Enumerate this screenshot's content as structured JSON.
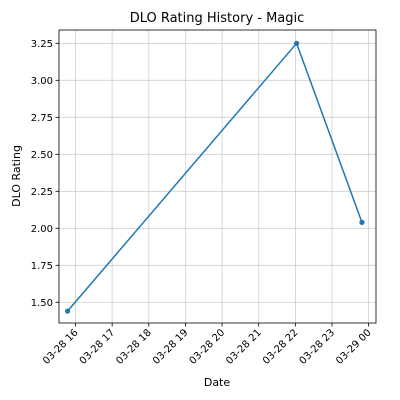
{
  "chart_data": {
    "type": "line",
    "title": "DLO Rating History - Magic",
    "xlabel": "Date",
    "ylabel": "DLO Rating",
    "x_axis_type": "datetime",
    "x_tick_labels": [
      "03-28 16",
      "03-28 17",
      "03-28 18",
      "03-28 19",
      "03-28 20",
      "03-28 21",
      "03-28 22",
      "03-28 23",
      "03-29 00"
    ],
    "x_tick_values": [
      "2024-03-28 16:00",
      "2024-03-28 17:00",
      "2024-03-28 18:00",
      "2024-03-28 19:00",
      "2024-03-28 20:00",
      "2024-03-28 21:00",
      "2024-03-28 22:00",
      "2024-03-28 23:00",
      "2024-03-29 00:00"
    ],
    "xlim": [
      "2024-03-28 15:33",
      "2024-03-29 00:12"
    ],
    "ylim": [
      1.36,
      3.34
    ],
    "y_ticks": [
      1.5,
      1.75,
      2.0,
      2.25,
      2.5,
      2.75,
      3.0,
      3.25
    ],
    "y_tick_labels": [
      "1.50",
      "1.75",
      "2.00",
      "2.25",
      "2.50",
      "2.75",
      "3.00",
      "3.25"
    ],
    "grid": true,
    "series": [
      {
        "color": "#1f77b4",
        "marker": "circle",
        "x": [
          "2024-03-28 15:47",
          "2024-03-28 22:02",
          "2024-03-28 23:49"
        ],
        "y": [
          1.44,
          3.25,
          2.04
        ]
      }
    ]
  }
}
